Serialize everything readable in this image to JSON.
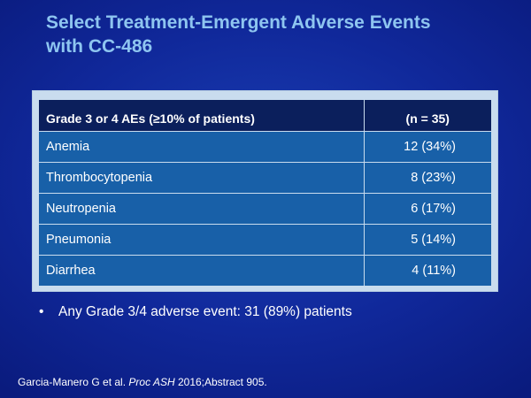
{
  "title": {
    "line1": "Select Treatment-Emergent Adverse Events",
    "line2": "with CC-486"
  },
  "table": {
    "header": {
      "col1": "Grade 3 or 4 AEs (≥10% of patients)",
      "col2": "(n = 35)"
    },
    "rows": [
      {
        "event": "Anemia",
        "count": "12 (34%)"
      },
      {
        "event": "Thrombocytopenia",
        "count": "8 (23%)"
      },
      {
        "event": "Neutropenia",
        "count": "6 (17%)"
      },
      {
        "event": "Pneumonia",
        "count": "5 (14%)"
      },
      {
        "event": "Diarrhea",
        "count": "4 (11%)"
      }
    ]
  },
  "bullet": {
    "symbol": "•",
    "text": "Any Grade 3/4 adverse event: 31 (89%) patients"
  },
  "citation": {
    "prefix": "Garcia-Manero G et al. ",
    "journal": "Proc ASH",
    "suffix": " 2016;Abstract 905."
  },
  "colors": {
    "title": "#8ec5f0",
    "header_bg": "#0b1f5c",
    "row_bg": "#1860a8",
    "frame_bg": "#c9dcee",
    "slide_bg": "#10289a"
  }
}
